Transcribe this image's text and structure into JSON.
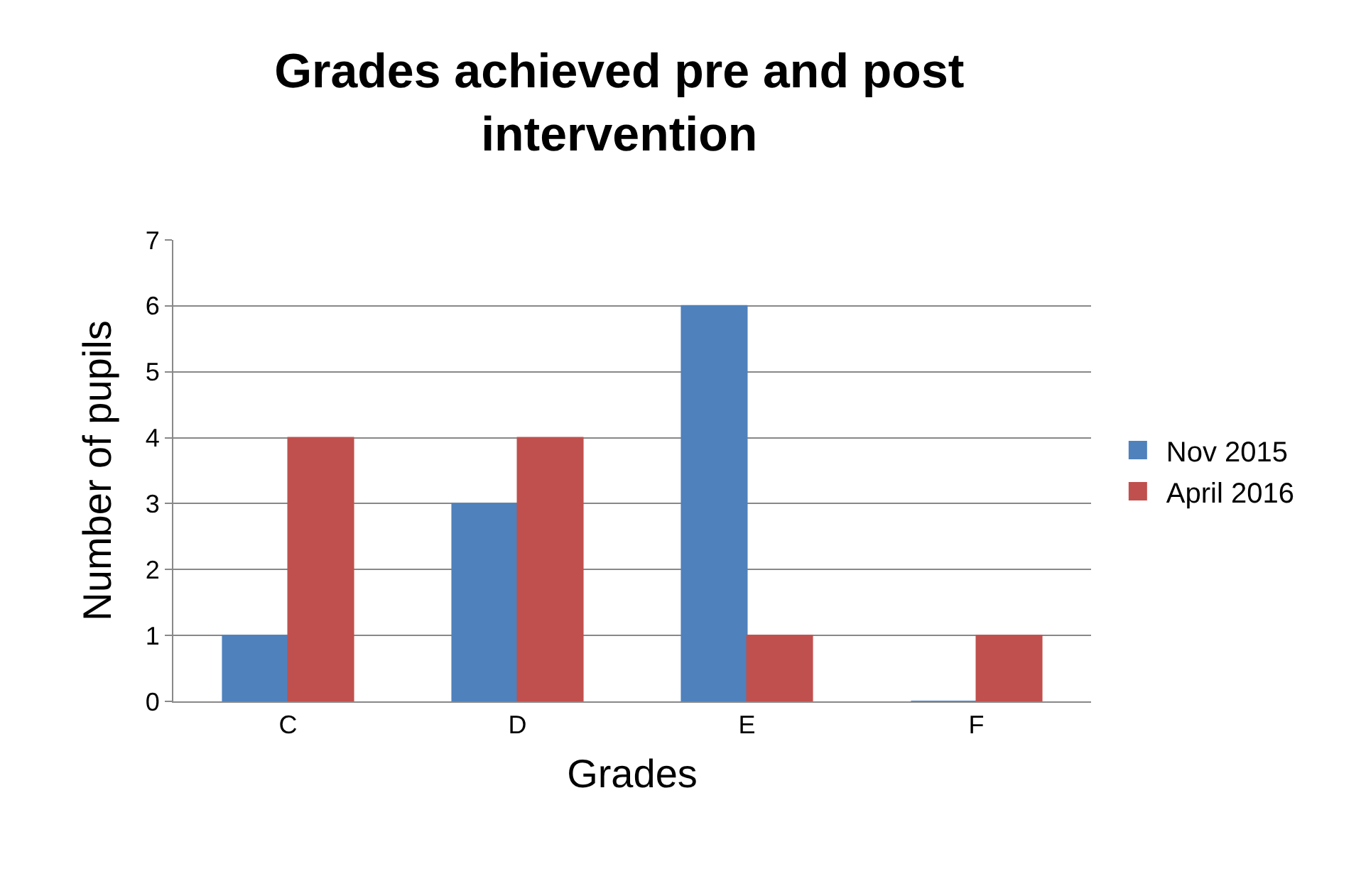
{
  "chart_data": {
    "type": "bar",
    "title": "Grades achieved pre and post intervention",
    "xlabel": "Grades",
    "ylabel": "Number of pupils",
    "categories": [
      "C",
      "D",
      "E",
      "F"
    ],
    "series": [
      {
        "name": "Nov 2015",
        "color": "#4f81bd",
        "values": [
          1,
          3,
          6,
          0
        ]
      },
      {
        "name": "April 2016",
        "color": "#c0504d",
        "values": [
          4,
          4,
          1,
          1
        ]
      }
    ],
    "ylim": [
      0,
      7
    ],
    "yticks": [
      0,
      1,
      2,
      3,
      4,
      5,
      6,
      7
    ],
    "grid": "y",
    "legend": "right"
  }
}
